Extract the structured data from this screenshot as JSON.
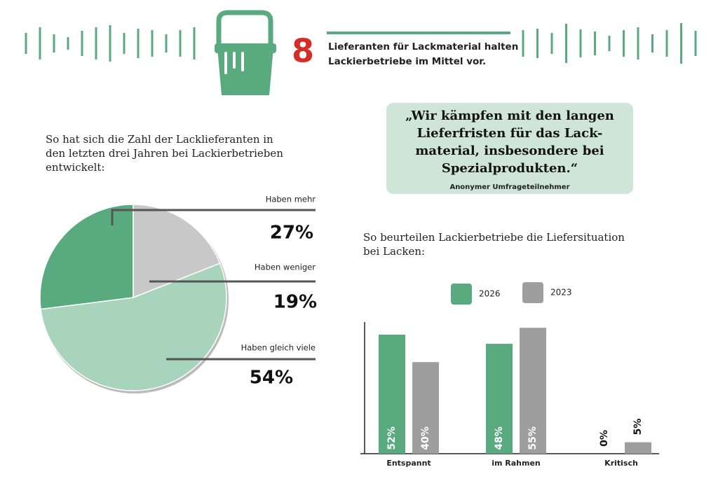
{
  "header": {
    "number": "8",
    "text_lines": [
      "Lieferanten für Lackmaterial halten",
      "Lackierbetriebe im Mittel vor."
    ]
  },
  "quote": {
    "lines": [
      "„Wir kämpfen mit den langen",
      "Lieferfristen für das Lack-",
      "material, insbesondere bei",
      "Spezialprodukten.“"
    ],
    "author": "Anonymer Umfrageteilnehmer"
  },
  "chart_data": [
    {
      "type": "pie",
      "subtitle_lines": [
        "So hat sich die Zahl der Lacklieferanten in",
        "den letzten drei Jahren bei Lackierbetrieben",
        "entwickelt:"
      ],
      "categories": [
        "Haben mehr",
        "Haben weniger",
        "Haben gleich viele"
      ],
      "values": [
        27,
        19,
        54
      ],
      "value_labels": [
        "27%",
        "19%",
        "54%"
      ],
      "colors": [
        "#5aaa80",
        "#c8c8c8",
        "#a8d4bc"
      ]
    },
    {
      "type": "bar",
      "subtitle_lines": [
        "So beurteilen Lackierbetriebe die Liefersituation",
        "bei Lacken:"
      ],
      "categories": [
        "Entspannt",
        "im Rahmen",
        "Kritisch"
      ],
      "series": [
        {
          "name": "2026",
          "color": "#5aaa80",
          "values": [
            52,
            48,
            0
          ],
          "value_labels": [
            "52%",
            "48%",
            "0%"
          ]
        },
        {
          "name": "2023",
          "color": "#9e9e9e",
          "values": [
            40,
            55,
            5
          ],
          "value_labels": [
            "40%",
            "55%",
            "5%"
          ]
        }
      ]
    }
  ]
}
